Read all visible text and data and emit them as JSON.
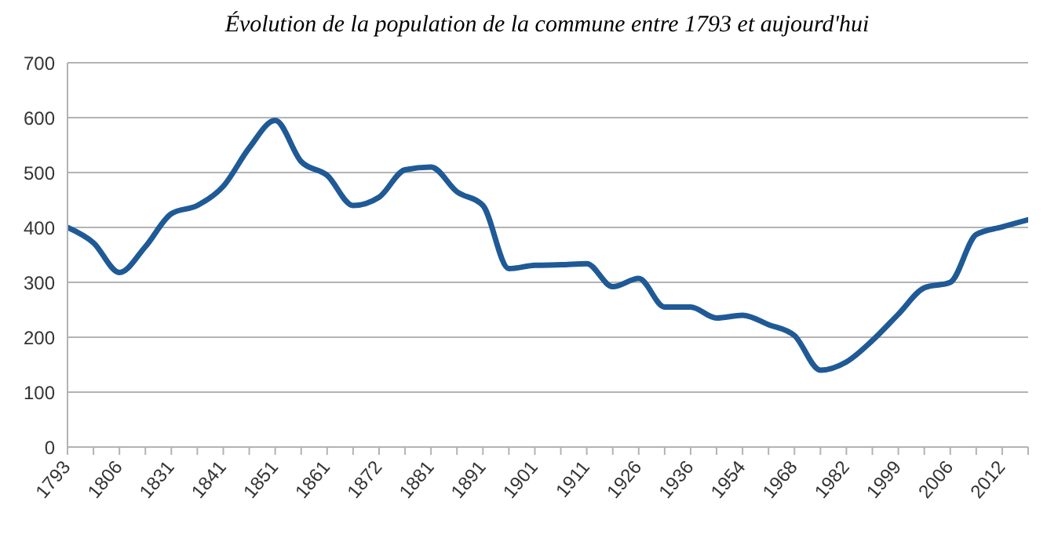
{
  "chart_data": {
    "type": "line",
    "title": "Évolution de la population de la commune entre 1793 et aujourd'hui",
    "categories": [
      "1793",
      null,
      "1806",
      null,
      "1831",
      null,
      "1841",
      null,
      "1851",
      null,
      "1861",
      null,
      "1872",
      null,
      "1881",
      null,
      "1891",
      null,
      "1901",
      null,
      "1911",
      null,
      "1926",
      null,
      "1936",
      null,
      "1954",
      null,
      "1968",
      null,
      "1982",
      null,
      "1999",
      null,
      "2006",
      null,
      "2012",
      null
    ],
    "series": [
      {
        "color": "#1f5a96",
        "values": [
          400,
          372,
          318,
          365,
          425,
          440,
          475,
          545,
          595,
          520,
          495,
          440,
          455,
          505,
          510,
          465,
          440,
          325,
          331,
          332,
          334,
          292,
          307,
          255,
          255,
          235,
          240,
          223,
          203,
          140,
          155,
          194,
          242,
          290,
          300,
          387,
          401,
          414
        ]
      }
    ],
    "ylim": [
      0,
      700
    ],
    "yticks": [
      0,
      100,
      200,
      300,
      400,
      500,
      600,
      700
    ],
    "grid": "y",
    "legend": false,
    "marker": "none",
    "line_style": "solid"
  }
}
